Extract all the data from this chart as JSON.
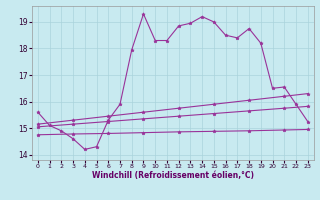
{
  "xlabel": "Windchill (Refroidissement éolien,°C)",
  "x_ticks": [
    0,
    1,
    2,
    3,
    4,
    5,
    6,
    7,
    8,
    9,
    10,
    11,
    12,
    13,
    14,
    15,
    16,
    17,
    18,
    19,
    20,
    21,
    22,
    23
  ],
  "ylim": [
    13.8,
    19.6
  ],
  "xlim": [
    -0.5,
    23.5
  ],
  "yticks": [
    14,
    15,
    16,
    17,
    18,
    19
  ],
  "bg_color": "#c8eaf0",
  "grid_color": "#aad4dc",
  "line_color": "#993399",
  "line1": [
    15.6,
    15.1,
    14.9,
    14.6,
    14.2,
    14.3,
    15.3,
    15.9,
    17.95,
    19.3,
    18.3,
    18.3,
    18.85,
    18.95,
    19.2,
    19.0,
    18.5,
    18.4,
    18.75,
    18.2,
    16.5,
    16.55,
    15.9,
    15.25
  ],
  "line2_x": [
    0,
    3,
    6,
    9,
    12,
    15,
    18,
    21,
    23
  ],
  "line2_y": [
    14.75,
    14.78,
    14.8,
    14.83,
    14.86,
    14.88,
    14.9,
    14.93,
    14.95
  ],
  "line3_x": [
    0,
    3,
    6,
    9,
    12,
    15,
    18,
    21,
    23
  ],
  "line3_y": [
    15.05,
    15.15,
    15.25,
    15.35,
    15.45,
    15.55,
    15.65,
    15.75,
    15.82
  ],
  "line4_x": [
    0,
    3,
    6,
    9,
    12,
    15,
    18,
    21,
    23
  ],
  "line4_y": [
    15.15,
    15.3,
    15.45,
    15.6,
    15.75,
    15.9,
    16.05,
    16.2,
    16.3
  ]
}
